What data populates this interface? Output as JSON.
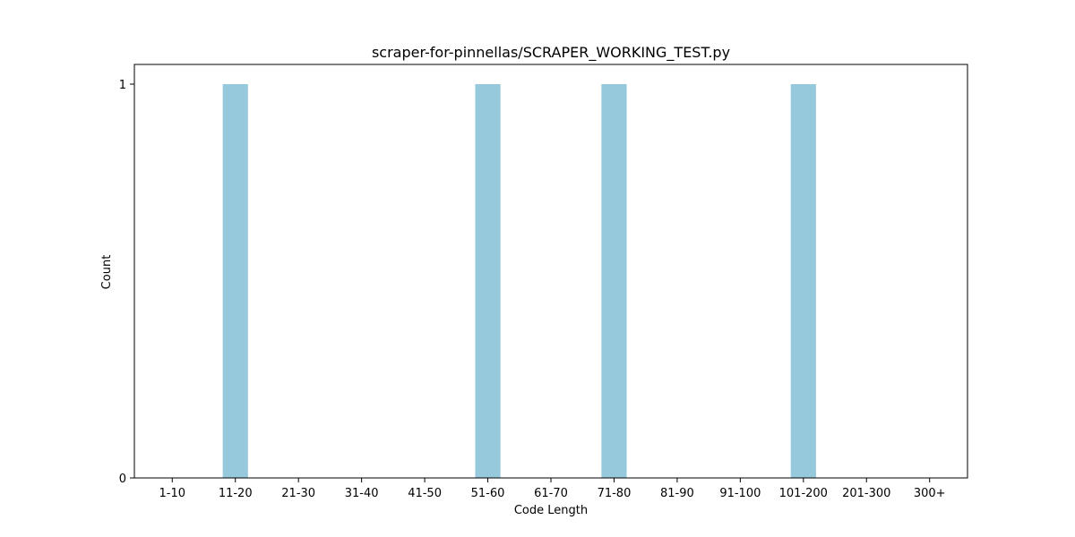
{
  "chart_data": {
    "type": "bar",
    "title": "scraper-for-pinnellas/SCRAPER_WORKING_TEST.py",
    "xlabel": "Code Length",
    "ylabel": "Count",
    "categories": [
      "1-10",
      "11-20",
      "21-30",
      "31-40",
      "41-50",
      "51-60",
      "61-70",
      "71-80",
      "81-90",
      "91-100",
      "101-200",
      "201-300",
      "300+"
    ],
    "values": [
      0,
      1,
      0,
      0,
      0,
      1,
      0,
      1,
      0,
      0,
      1,
      0,
      0
    ],
    "ylim": [
      0,
      1
    ],
    "yticks": [
      0,
      1
    ],
    "grid": false,
    "bar_color": "#96c9dc"
  }
}
